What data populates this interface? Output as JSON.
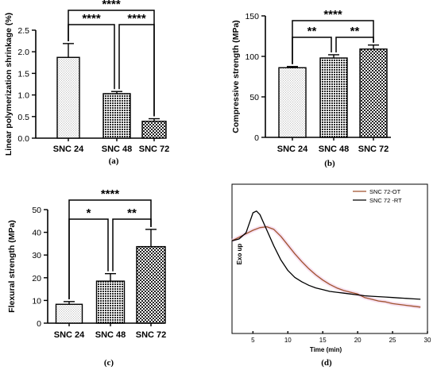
{
  "chart_data": [
    {
      "type": "bar",
      "panel_label": "(a)",
      "ylabel": "Linear polymerization shrinkage (%)",
      "categories": [
        "SNC 24",
        "SNC 48",
        "SNC 72"
      ],
      "values": [
        1.87,
        1.03,
        0.39
      ],
      "errors": [
        0.32,
        0.05,
        0.06
      ],
      "ylim": [
        0,
        2.5
      ],
      "yticks": [
        "0.0",
        "0.5",
        "1.0",
        "1.5",
        "2.0",
        "2.5"
      ],
      "significance": [
        {
          "from": 0,
          "to": 1,
          "label": "****",
          "level": 1
        },
        {
          "from": 1,
          "to": 2,
          "label": "****",
          "level": 1
        },
        {
          "from": 0,
          "to": 2,
          "label": "****",
          "level": 2
        }
      ]
    },
    {
      "type": "bar",
      "panel_label": "(b)",
      "ylabel": "Compressive strength (MPa)",
      "categories": [
        "SNC 24",
        "SNC 48",
        "SNC 72"
      ],
      "values": [
        86,
        98,
        109
      ],
      "errors": [
        1.5,
        4,
        5
      ],
      "ylim": [
        0,
        150
      ],
      "yticks": [
        "0",
        "50",
        "100",
        "150"
      ],
      "significance": [
        {
          "from": 0,
          "to": 1,
          "label": "**",
          "level": 1
        },
        {
          "from": 1,
          "to": 2,
          "label": "**",
          "level": 1
        },
        {
          "from": 0,
          "to": 2,
          "label": "****",
          "level": 2
        }
      ]
    },
    {
      "type": "bar",
      "panel_label": "(c)",
      "ylabel": "Flexural strength (MPa)",
      "categories": [
        "SNC 24",
        "SNC 48",
        "SNC 72"
      ],
      "values": [
        8.3,
        18.5,
        33.7
      ],
      "errors": [
        1.2,
        3.3,
        7.6
      ],
      "ylim": [
        0,
        50
      ],
      "yticks": [
        "0",
        "10",
        "20",
        "30",
        "40",
        "50"
      ],
      "significance": [
        {
          "from": 0,
          "to": 1,
          "label": "*",
          "level": 1
        },
        {
          "from": 1,
          "to": 2,
          "label": "**",
          "level": 1
        },
        {
          "from": 0,
          "to": 2,
          "label": "****",
          "level": 2
        }
      ]
    },
    {
      "type": "line",
      "panel_label": "(d)",
      "xlabel": "Time (min)",
      "ylabel": "Exo up",
      "xlim": [
        2,
        30
      ],
      "xticks": [
        "5",
        "10",
        "15",
        "20",
        "25",
        "30"
      ],
      "series": [
        {
          "name": "SNC 72-OT",
          "color": "#a0522d",
          "x": [
            2,
            3,
            4,
            5,
            6,
            7,
            8,
            9,
            10,
            11,
            12,
            13,
            14,
            15,
            16,
            17,
            18,
            19,
            20,
            21,
            22,
            23,
            24,
            25,
            26,
            27,
            28,
            29
          ],
          "y": [
            0.88,
            0.92,
            0.96,
            1.0,
            1.03,
            1.04,
            1.01,
            0.93,
            0.83,
            0.73,
            0.64,
            0.56,
            0.49,
            0.43,
            0.38,
            0.34,
            0.31,
            0.29,
            0.27,
            0.23,
            0.21,
            0.19,
            0.18,
            0.16,
            0.15,
            0.14,
            0.13,
            0.12
          ]
        },
        {
          "name": "SNC 72 -RT",
          "color": "#000000",
          "x": [
            2,
            3,
            4,
            5,
            5.5,
            6,
            7,
            8,
            9,
            10,
            11,
            12,
            13,
            14,
            15,
            16,
            17,
            18,
            19,
            20,
            21,
            22,
            23,
            24,
            25,
            26,
            27,
            28,
            29
          ],
          "y": [
            0.88,
            0.9,
            0.97,
            1.2,
            1.22,
            1.18,
            1.0,
            0.82,
            0.66,
            0.54,
            0.46,
            0.41,
            0.37,
            0.34,
            0.32,
            0.3,
            0.29,
            0.28,
            0.27,
            0.26,
            0.25,
            0.245,
            0.24,
            0.235,
            0.23,
            0.225,
            0.22,
            0.215,
            0.21
          ]
        }
      ]
    }
  ]
}
